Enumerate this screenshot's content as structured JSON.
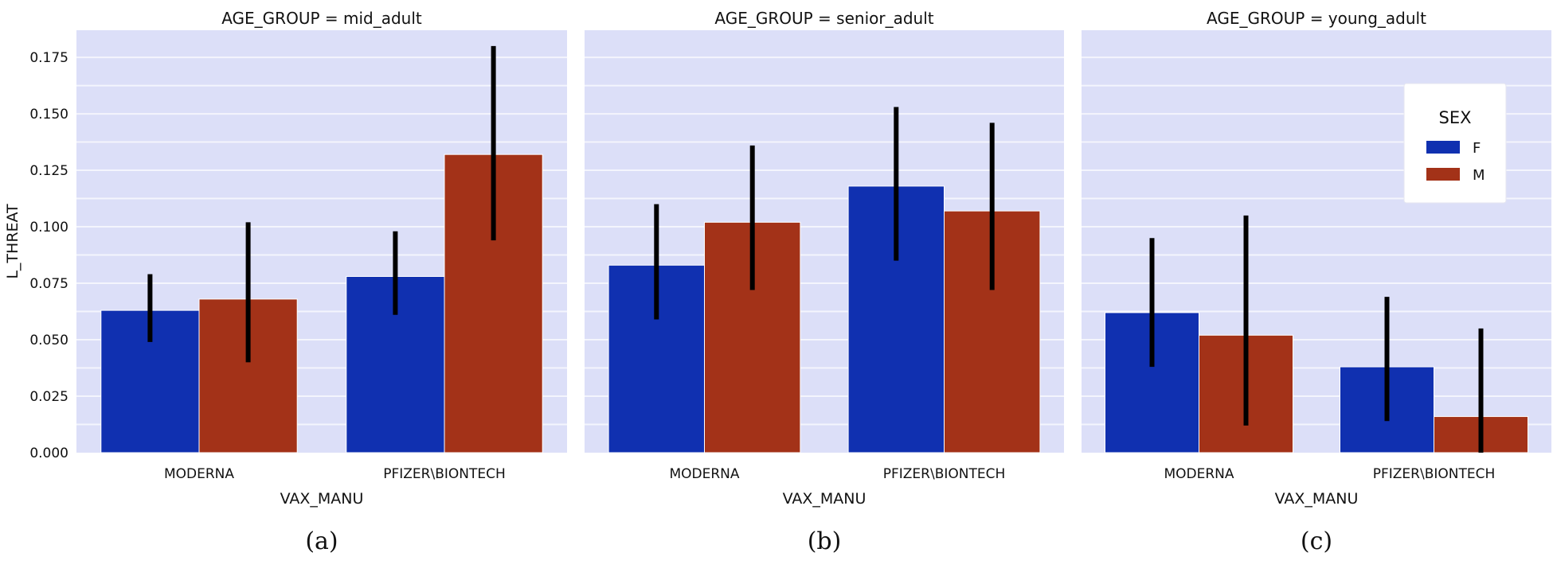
{
  "chart_data": [
    {
      "type": "bar",
      "title": "AGE_GROUP = mid_adult",
      "subfigure_label": "(a)",
      "xlabel": "VAX_MANU",
      "ylabel": "L_THREAT",
      "ylim": [
        0,
        0.187
      ],
      "yticks": [
        "0.000",
        "0.025",
        "0.050",
        "0.075",
        "0.100",
        "0.125",
        "0.150",
        "0.175"
      ],
      "categories": [
        "MODERNA",
        "PFIZER\\BIONTECH"
      ],
      "series": [
        {
          "name": "F",
          "values": [
            0.063,
            0.078
          ],
          "err_low": [
            0.049,
            0.061
          ],
          "err_high": [
            0.079,
            0.098
          ]
        },
        {
          "name": "M",
          "values": [
            0.068,
            0.132
          ],
          "err_low": [
            0.04,
            0.094
          ],
          "err_high": [
            0.102,
            0.18
          ]
        }
      ],
      "grid": true
    },
    {
      "type": "bar",
      "title": "AGE_GROUP = senior_adult",
      "subfigure_label": "(b)",
      "xlabel": "VAX_MANU",
      "ylabel": "",
      "ylim": [
        0,
        0.187
      ],
      "categories": [
        "MODERNA",
        "PFIZER\\BIONTECH"
      ],
      "series": [
        {
          "name": "F",
          "values": [
            0.083,
            0.118
          ],
          "err_low": [
            0.059,
            0.085
          ],
          "err_high": [
            0.11,
            0.153
          ]
        },
        {
          "name": "M",
          "values": [
            0.102,
            0.107
          ],
          "err_low": [
            0.072,
            0.072
          ],
          "err_high": [
            0.136,
            0.146
          ]
        }
      ],
      "grid": true
    },
    {
      "type": "bar",
      "title": "AGE_GROUP = young_adult",
      "subfigure_label": "(c)",
      "xlabel": "VAX_MANU",
      "ylabel": "",
      "ylim": [
        0,
        0.187
      ],
      "categories": [
        "MODERNA",
        "PFIZER\\BIONTECH"
      ],
      "series": [
        {
          "name": "F",
          "values": [
            0.062,
            0.038
          ],
          "err_low": [
            0.038,
            0.014
          ],
          "err_high": [
            0.095,
            0.069
          ]
        },
        {
          "name": "M",
          "values": [
            0.052,
            0.016
          ],
          "err_low": [
            0.012,
            0.0
          ],
          "err_high": [
            0.105,
            0.055
          ]
        }
      ],
      "legend": {
        "title": "SEX",
        "entries": [
          "F",
          "M"
        ],
        "placement": "top-right"
      },
      "grid": true
    }
  ],
  "colors": {
    "F": "#1030b0",
    "M": "#a33218",
    "plot_background": "#dcdff8",
    "grid": "#f4f5fd",
    "error_bar": "#000000"
  }
}
